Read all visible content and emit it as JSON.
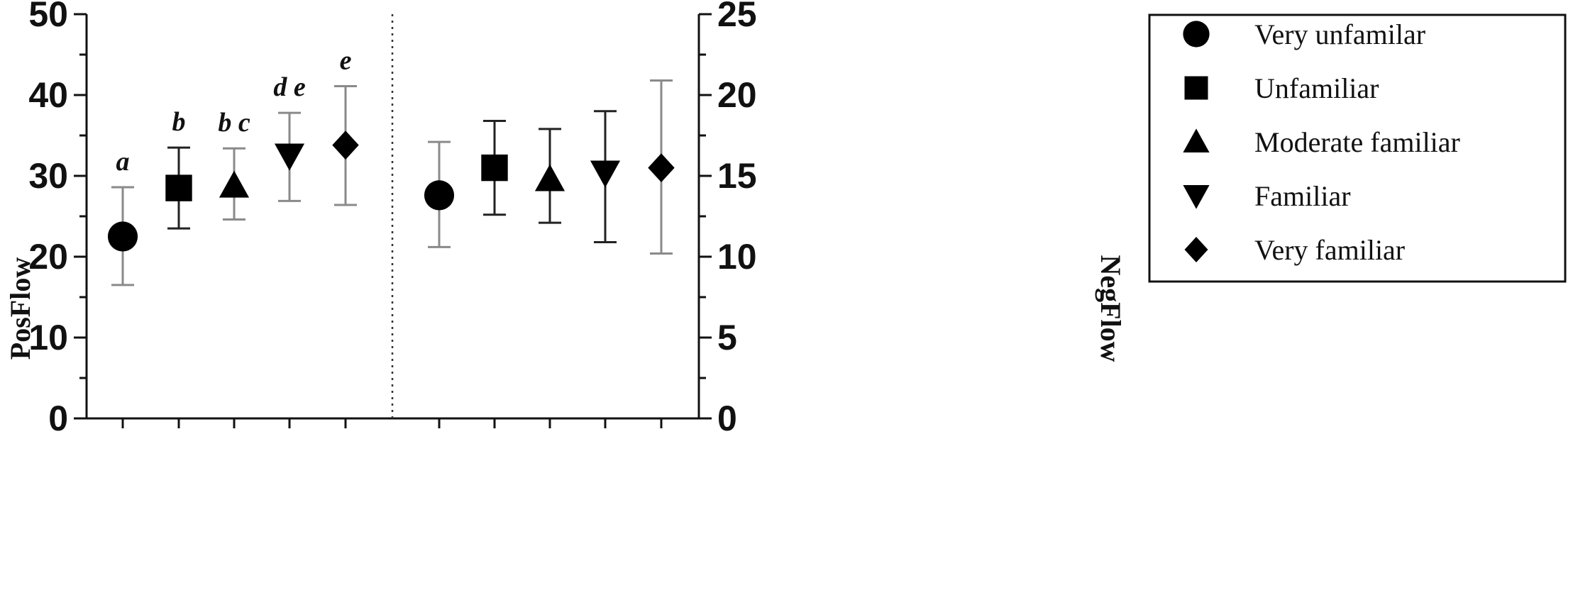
{
  "chart_data": {
    "type": "scatter",
    "title": "",
    "left_axis": {
      "label": "PosFlow",
      "ylim": [
        0,
        50
      ],
      "ticks": [
        0,
        10,
        20,
        30,
        40,
        50
      ],
      "tick_labels": [
        "0",
        "10",
        "20",
        "30",
        "40",
        "50"
      ]
    },
    "right_axis": {
      "label": "NegFlow",
      "ylim": [
        0,
        25
      ],
      "ticks": [
        0,
        5,
        10,
        15,
        20,
        25
      ],
      "tick_labels": [
        "0",
        "5",
        "10",
        "15",
        "20",
        "25"
      ]
    },
    "categories": [
      "Very unfamilar",
      "Unfamiliar",
      "Moderate familiar",
      "Familiar",
      "Very familiar"
    ],
    "series": [
      {
        "name": "PosFlow",
        "axis": "left",
        "points": [
          {
            "category": "Very unfamilar",
            "marker": "circle",
            "mean": 22.5,
            "upper": 28.6,
            "lower": 16.5,
            "bar_color": "#8a8a8a",
            "letter": "a"
          },
          {
            "category": "Unfamiliar",
            "marker": "square",
            "mean": 28.5,
            "upper": 33.5,
            "lower": 23.5,
            "bar_color": "#222222",
            "letter": "b"
          },
          {
            "category": "Moderate familiar",
            "marker": "triangle-up",
            "mean": 28.8,
            "upper": 33.4,
            "lower": 24.6,
            "bar_color": "#8a8a8a",
            "letter": "bc"
          },
          {
            "category": "Familiar",
            "marker": "triangle-down",
            "mean": 32.5,
            "upper": 37.8,
            "lower": 26.9,
            "bar_color": "#8a8a8a",
            "letter": "de"
          },
          {
            "category": "Very familiar",
            "marker": "diamond",
            "mean": 33.8,
            "upper": 41.1,
            "lower": 26.4,
            "bar_color": "#8a8a8a",
            "letter": "e"
          }
        ]
      },
      {
        "name": "NegFlow",
        "axis": "right",
        "points": [
          {
            "category": "Very unfamilar",
            "marker": "circle",
            "mean": 13.8,
            "upper": 17.1,
            "lower": 10.6,
            "bar_color": "#8a8a8a"
          },
          {
            "category": "Unfamiliar",
            "marker": "square",
            "mean": 15.5,
            "upper": 18.4,
            "lower": 12.6,
            "bar_color": "#222222"
          },
          {
            "category": "Moderate familiar",
            "marker": "triangle-up",
            "mean": 14.8,
            "upper": 17.9,
            "lower": 12.1,
            "bar_color": "#222222"
          },
          {
            "category": "Familiar",
            "marker": "triangle-down",
            "mean": 15.2,
            "upper": 19.0,
            "lower": 10.9,
            "bar_color": "#222222"
          },
          {
            "category": "Very familiar",
            "marker": "diamond",
            "mean": 15.5,
            "upper": 20.9,
            "lower": 10.2,
            "bar_color": "#8a8a8a"
          }
        ]
      }
    ],
    "divider": "dotted vertical line between PosFlow and NegFlow groups",
    "grid": false,
    "legend": {
      "position": "right",
      "entries": [
        {
          "marker": "circle",
          "label": "Very unfamilar"
        },
        {
          "marker": "square",
          "label": "Unfamiliar"
        },
        {
          "marker": "triangle-up",
          "label": "Moderate familiar"
        },
        {
          "marker": "triangle-down",
          "label": "Familiar"
        },
        {
          "marker": "diamond",
          "label": "Very familiar"
        }
      ]
    }
  }
}
